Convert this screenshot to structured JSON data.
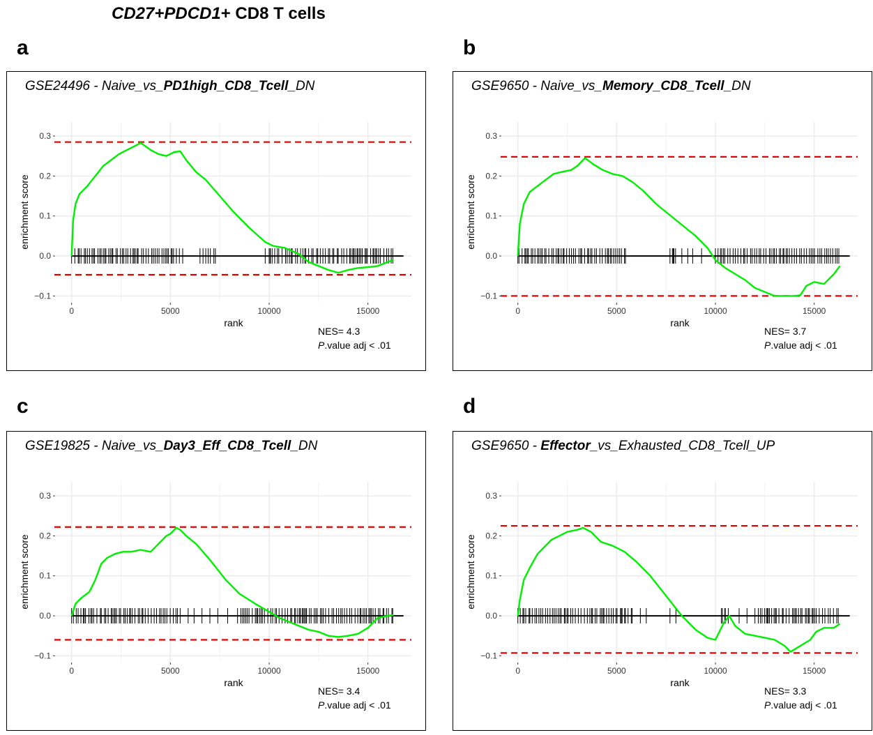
{
  "figure_title": {
    "gene_a": "CD27",
    "plus_a": "+",
    "gene_b": "PDCD1",
    "rest": "+ CD8 T cells"
  },
  "colors": {
    "curve": "#00ee00",
    "threshold": "#e00000",
    "ticks": "#000000",
    "grid": "#ebebeb"
  },
  "panels": [
    {
      "letter": "a",
      "title": {
        "pre": "GSE24496 - Naive_vs_",
        "bold": "PD1high_CD8_Tcell_",
        "post": "DN"
      },
      "nes_text": "NES= 4.3",
      "p_italic": "P",
      "p_rest": ".value adj < .01"
    },
    {
      "letter": "b",
      "title": {
        "pre": "GSE9650 - Naive_vs_",
        "bold": "Memory_CD8_Tcell_",
        "post": "DN"
      },
      "nes_text": "NES= 3.7",
      "p_italic": "P",
      "p_rest": ".value adj < .01"
    },
    {
      "letter": "c",
      "title": {
        "pre": "GSE19825 - Naive_vs_",
        "bold": "Day3_Eff_CD8_Tcell_",
        "post": "DN"
      },
      "nes_text": "NES= 3.4",
      "p_italic": "P",
      "p_rest": ".value adj < .01"
    },
    {
      "letter": "d",
      "title": {
        "pre": "GSE9650 - ",
        "bold": "Effector_",
        "post": "vs_Exhausted_CD8_Tcell_UP"
      },
      "nes_text": "NES= 3.3",
      "p_italic": "P",
      "p_rest": ".value adj < .01"
    }
  ],
  "chart_data": [
    {
      "type": "line",
      "panel": "a",
      "xlabel": "rank",
      "ylabel": "enrichment score",
      "xlim": [
        -800,
        17200
      ],
      "ylim": [
        -0.115,
        0.335
      ],
      "x_ticks": [
        0,
        5000,
        10000,
        15000
      ],
      "y_ticks": [
        -0.1,
        0.0,
        0.1,
        0.2,
        0.3
      ],
      "y_tick_labels": [
        "−0.1",
        "0.0",
        "0.1",
        "0.2",
        "0.3"
      ],
      "grid": true,
      "thresholds": [
        0.285,
        -0.047
      ],
      "curve": {
        "x": [
          0,
          80,
          200,
          400,
          800,
          1200,
          1600,
          2000,
          2400,
          2800,
          3200,
          3500,
          4000,
          4400,
          4800,
          5200,
          5500,
          5800,
          6300,
          6800,
          7500,
          8200,
          9000,
          9800,
          10200,
          10800,
          11500,
          12000,
          12500,
          13000,
          13500,
          14000,
          14500,
          15000,
          15500,
          16000,
          16300
        ],
        "y": [
          0.0,
          0.09,
          0.13,
          0.155,
          0.175,
          0.2,
          0.225,
          0.24,
          0.255,
          0.265,
          0.275,
          0.283,
          0.265,
          0.255,
          0.25,
          0.26,
          0.262,
          0.24,
          0.21,
          0.19,
          0.15,
          0.11,
          0.07,
          0.035,
          0.025,
          0.02,
          0.005,
          -0.015,
          -0.025,
          -0.035,
          -0.042,
          -0.035,
          -0.03,
          -0.028,
          -0.025,
          -0.015,
          -0.01
        ]
      },
      "hit_ranges": [
        [
          0,
          5700
        ],
        [
          6500,
          7300
        ],
        [
          10000,
          16300
        ]
      ],
      "hit_sparse": [
        9800,
        10050
      ]
    },
    {
      "type": "line",
      "panel": "b",
      "xlabel": "rank",
      "ylabel": "enrichment score",
      "xlim": [
        -800,
        17200
      ],
      "ylim": [
        -0.115,
        0.335
      ],
      "x_ticks": [
        0,
        5000,
        10000,
        15000
      ],
      "y_ticks": [
        -0.1,
        0.0,
        0.1,
        0.2,
        0.3
      ],
      "y_tick_labels": [
        "−0.1",
        "0.0",
        "0.1",
        "0.2",
        "0.3"
      ],
      "grid": true,
      "thresholds": [
        0.248,
        -0.1
      ],
      "curve": {
        "x": [
          0,
          100,
          300,
          600,
          1000,
          1400,
          1800,
          2200,
          2700,
          3000,
          3400,
          3800,
          4300,
          4800,
          5300,
          5800,
          6300,
          7000,
          8000,
          9000,
          9600,
          10000,
          10500,
          11000,
          11500,
          12000,
          12500,
          13000,
          13500,
          14000,
          14300,
          14600,
          15000,
          15500,
          16000,
          16300
        ],
        "y": [
          0.0,
          0.08,
          0.13,
          0.16,
          0.175,
          0.19,
          0.205,
          0.21,
          0.215,
          0.225,
          0.245,
          0.23,
          0.215,
          0.205,
          0.2,
          0.185,
          0.165,
          0.13,
          0.09,
          0.05,
          0.02,
          -0.01,
          -0.03,
          -0.045,
          -0.06,
          -0.08,
          -0.09,
          -0.1,
          -0.1,
          -0.1,
          -0.098,
          -0.075,
          -0.065,
          -0.07,
          -0.045,
          -0.025
        ]
      },
      "hit_ranges": [
        [
          0,
          5500
        ],
        [
          7700,
          8000
        ],
        [
          10000,
          16300
        ]
      ],
      "hit_sparse": [
        7900,
        8300,
        8600,
        8850,
        9300
      ]
    },
    {
      "type": "line",
      "panel": "c",
      "xlabel": "rank",
      "ylabel": "enrichment score",
      "xlim": [
        -800,
        17200
      ],
      "ylim": [
        -0.115,
        0.335
      ],
      "x_ticks": [
        0,
        5000,
        10000,
        15000
      ],
      "y_ticks": [
        -0.1,
        0.0,
        0.1,
        0.2,
        0.3
      ],
      "y_tick_labels": [
        "−0.1",
        "0.0",
        "0.1",
        "0.2",
        "0.3"
      ],
      "grid": true,
      "thresholds": [
        0.222,
        -0.06
      ],
      "curve": {
        "x": [
          0,
          200,
          500,
          900,
          1200,
          1500,
          1800,
          2200,
          2600,
          3000,
          3500,
          4000,
          4500,
          4800,
          5000,
          5300,
          5500,
          5800,
          6300,
          7000,
          7800,
          8500,
          9300,
          10000,
          10500,
          11000,
          11500,
          12000,
          12500,
          13000,
          13500,
          14000,
          14500,
          15000,
          15500,
          16000,
          16300
        ],
        "y": [
          0.0,
          0.03,
          0.045,
          0.06,
          0.09,
          0.13,
          0.145,
          0.155,
          0.16,
          0.16,
          0.165,
          0.16,
          0.185,
          0.2,
          0.205,
          0.22,
          0.215,
          0.2,
          0.18,
          0.14,
          0.09,
          0.055,
          0.03,
          0.01,
          -0.005,
          -0.015,
          -0.025,
          -0.035,
          -0.04,
          -0.05,
          -0.053,
          -0.05,
          -0.045,
          -0.03,
          -0.005,
          0.0,
          0.002
        ]
      },
      "hit_ranges": [
        [
          0,
          5600
        ],
        [
          8400,
          16300
        ]
      ],
      "hit_sparse": [
        5900,
        6200,
        6600,
        7000,
        7400,
        7900
      ]
    },
    {
      "type": "line",
      "panel": "d",
      "xlabel": "rank",
      "ylabel": "enrichment score",
      "xlim": [
        -800,
        17200
      ],
      "ylim": [
        -0.115,
        0.335
      ],
      "x_ticks": [
        0,
        5000,
        10000,
        15000
      ],
      "y_ticks": [
        -0.1,
        0.0,
        0.1,
        0.2,
        0.3
      ],
      "y_tick_labels": [
        "−0.1",
        "0.0",
        "0.1",
        "0.2",
        "0.3"
      ],
      "grid": true,
      "thresholds": [
        0.225,
        -0.093
      ],
      "curve": {
        "x": [
          0,
          100,
          300,
          600,
          1000,
          1300,
          1700,
          2100,
          2500,
          3000,
          3300,
          3700,
          4200,
          4800,
          5400,
          6000,
          6700,
          7500,
          8300,
          9000,
          9600,
          10000,
          10400,
          10700,
          11000,
          11500,
          12000,
          12500,
          13000,
          13500,
          13800,
          14300,
          14800,
          15100,
          15500,
          16000,
          16300
        ],
        "y": [
          0.0,
          0.04,
          0.09,
          0.12,
          0.155,
          0.17,
          0.19,
          0.2,
          0.21,
          0.215,
          0.22,
          0.21,
          0.185,
          0.175,
          0.16,
          0.135,
          0.1,
          0.05,
          0.0,
          -0.035,
          -0.055,
          -0.06,
          -0.02,
          0.0,
          -0.025,
          -0.045,
          -0.05,
          -0.055,
          -0.06,
          -0.075,
          -0.09,
          -0.075,
          -0.06,
          -0.04,
          -0.03,
          -0.03,
          -0.02
        ]
      },
      "hit_ranges": [
        [
          0,
          5800
        ],
        [
          10300,
          10700
        ],
        [
          12000,
          16300
        ]
      ],
      "hit_sparse": [
        6200,
        6500,
        7700,
        8000,
        10500,
        11200,
        11600
      ]
    }
  ]
}
